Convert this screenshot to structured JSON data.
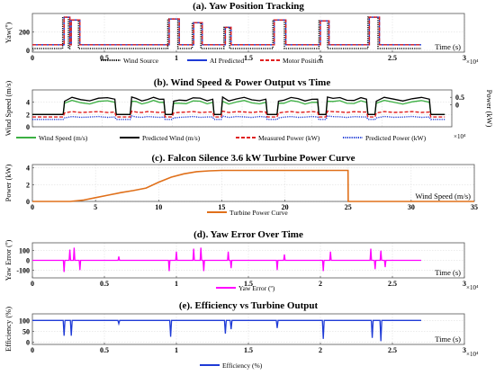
{
  "chart_data": [
    {
      "id": "a",
      "type": "line",
      "title": "(a). Yaw Position Tracking",
      "xlabel": "Time (s)",
      "ylabel": "Yaw(º)",
      "x_exponent": "×10⁴",
      "xlim": [
        0,
        3
      ],
      "ylim": [
        -20,
        400
      ],
      "xticks": [
        0,
        0.5,
        1,
        1.5,
        2,
        2.5,
        3
      ],
      "xtick_labels": [
        "0",
        "0.5",
        "1",
        "1.5",
        "2",
        "2.5",
        "3"
      ],
      "yticks": [
        0,
        200
      ],
      "ytick_labels": [
        "0",
        "200"
      ],
      "grid": true,
      "legend_position": "bottom",
      "pulses": [
        [
          0.22,
          0.26,
          360
        ],
        [
          0.27,
          0.33,
          330
        ],
        [
          0.95,
          1.02,
          340
        ],
        [
          1.12,
          1.18,
          300
        ],
        [
          1.34,
          1.38,
          250
        ],
        [
          1.68,
          1.76,
          330
        ],
        [
          2.0,
          2.06,
          320
        ],
        [
          2.34,
          2.41,
          360
        ]
      ],
      "series": [
        {
          "name": "Wind Source",
          "color": "#000000",
          "style": "dotted",
          "base": 20,
          "kind": "pulse"
        },
        {
          "name": "AI Predicted",
          "color": "#1f3bd6",
          "style": "solid",
          "base": 60,
          "kind": "pulse"
        },
        {
          "name": "Motor Position",
          "color": "#e02020",
          "style": "dashed",
          "base": 60,
          "kind": "pulse"
        }
      ]
    },
    {
      "id": "b",
      "type": "line",
      "title": "(b). Wind Speed & Power Output vs Time",
      "ylabel": "Wind Speed (m/s)",
      "ylabel_right": "Power (kW)",
      "x_exponent": "×10⁴",
      "xlim": [
        0,
        3
      ],
      "ylim": [
        0,
        6
      ],
      "ylim_right": [
        -1.5,
        1
      ],
      "yticks": [
        0,
        2,
        4
      ],
      "ytick_labels": [
        "0",
        "2",
        "4"
      ],
      "yticks_right": [
        0,
        0.5
      ],
      "ytick_labels_right": [
        "0",
        "0.5"
      ],
      "grid": true,
      "legend_position": "bottom",
      "segments": [
        [
          0.22,
          0.6
        ],
        [
          0.7,
          0.95
        ],
        [
          1.0,
          1.3
        ],
        [
          1.35,
          1.68
        ],
        [
          1.75,
          2.05
        ],
        [
          2.1,
          2.4
        ],
        [
          2.45,
          2.85
        ]
      ],
      "series": [
        {
          "name": "Wind Speed (m/s)",
          "color": "#3cb043",
          "style": "solid",
          "axis": "left",
          "low": 2.0,
          "high": 4.0
        },
        {
          "name": "Predicted Wind (m/s)",
          "color": "#000000",
          "style": "solid",
          "axis": "left",
          "low": 2.0,
          "high": 4.5
        },
        {
          "name": "Measured Power (kW)",
          "color": "#e02020",
          "style": "dashed",
          "axis": "left",
          "low": 1.6,
          "high": 2.4
        },
        {
          "name": "Predicted Power (kW)",
          "color": "#1f3bd6",
          "style": "dotted",
          "axis": "left",
          "low": 1.2,
          "high": 1.6
        }
      ]
    },
    {
      "id": "c",
      "type": "line",
      "title": "(c). Falcon Silence 3.6 kW Turbine Power Curve",
      "xlabel": "Wind Speed (m/s)",
      "ylabel": "Power (kW)",
      "xlim": [
        0,
        35
      ],
      "ylim": [
        0,
        4.4
      ],
      "xticks": [
        0,
        5,
        10,
        15,
        20,
        25,
        30,
        35
      ],
      "xtick_labels": [
        "0",
        "5",
        "10",
        "15",
        "20",
        "25",
        "30",
        "35"
      ],
      "yticks": [
        0,
        2,
        4
      ],
      "ytick_labels": [
        "0",
        "2",
        "4"
      ],
      "grid": true,
      "legend_position": "bottom",
      "series": [
        {
          "name": "Turbine Power Curve",
          "color": "#e0701a",
          "style": "solid",
          "x": [
            0,
            3,
            4,
            5,
            6,
            7,
            8,
            9,
            10,
            11,
            12,
            13,
            14,
            15,
            25,
            25.01,
            35
          ],
          "y": [
            0,
            0,
            0.15,
            0.45,
            0.75,
            1.05,
            1.3,
            1.6,
            2.3,
            2.9,
            3.3,
            3.55,
            3.65,
            3.7,
            3.7,
            0,
            0
          ]
        }
      ]
    },
    {
      "id": "d",
      "type": "line",
      "title": "(d). Yaw Error Over Time",
      "xlabel": "Time (s)",
      "ylabel": "Yaw Error (º)",
      "x_exponent": "×10⁴",
      "xlim": [
        0,
        3
      ],
      "ylim": [
        -180,
        180
      ],
      "xticks": [
        0,
        0.5,
        1,
        1.5,
        2,
        2.5,
        3
      ],
      "xtick_labels": [
        "0",
        "0.5",
        "1",
        "1.5",
        "2",
        "2.5",
        "3"
      ],
      "yticks": [
        -100,
        0,
        100
      ],
      "ytick_labels": [
        "-100",
        "0",
        "100"
      ],
      "grid": true,
      "legend_position": "bottom",
      "series": [
        {
          "name": "Yaw Error (º)",
          "color": "#ff00ff",
          "style": "solid",
          "base": 0,
          "spikes": [
            [
              0.22,
              -120
            ],
            [
              0.26,
              110
            ],
            [
              0.29,
              130
            ],
            [
              0.33,
              -100
            ],
            [
              0.6,
              40
            ],
            [
              0.95,
              -110
            ],
            [
              1.0,
              90
            ],
            [
              1.12,
              120
            ],
            [
              1.17,
              130
            ],
            [
              1.19,
              -110
            ],
            [
              1.36,
              90
            ],
            [
              1.38,
              -80
            ],
            [
              1.7,
              -100
            ],
            [
              1.75,
              60
            ],
            [
              2.02,
              -110
            ],
            [
              2.07,
              90
            ],
            [
              2.35,
              120
            ],
            [
              2.38,
              -90
            ],
            [
              2.42,
              100
            ],
            [
              2.45,
              -70
            ]
          ]
        }
      ]
    },
    {
      "id": "e",
      "type": "line",
      "title": "(e). Efficiency vs Turbine Output",
      "xlabel": "Time (s)",
      "ylabel": "Efficiency (%)",
      "x_exponent": "×10⁴",
      "xlim": [
        0,
        3
      ],
      "ylim": [
        -10,
        130
      ],
      "xticks": [
        0,
        0.5,
        1,
        1.5,
        2,
        2.5,
        3
      ],
      "xtick_labels": [
        "0",
        "0.5",
        "1",
        "1.5",
        "2",
        "2.5",
        "3"
      ],
      "yticks": [
        0,
        50,
        100
      ],
      "ytick_labels": [
        "0",
        "50",
        "100"
      ],
      "grid": true,
      "legend_position": "bottom",
      "series": [
        {
          "name": "Efficiency (%)",
          "color": "#1f3bd6",
          "style": "solid",
          "base": 100,
          "dips": [
            [
              0.22,
              30
            ],
            [
              0.27,
              30
            ],
            [
              0.6,
              85
            ],
            [
              0.96,
              25
            ],
            [
              1.34,
              40
            ],
            [
              1.38,
              60
            ],
            [
              1.7,
              65
            ],
            [
              2.02,
              15
            ],
            [
              2.36,
              20
            ],
            [
              2.42,
              5
            ]
          ]
        }
      ]
    }
  ]
}
